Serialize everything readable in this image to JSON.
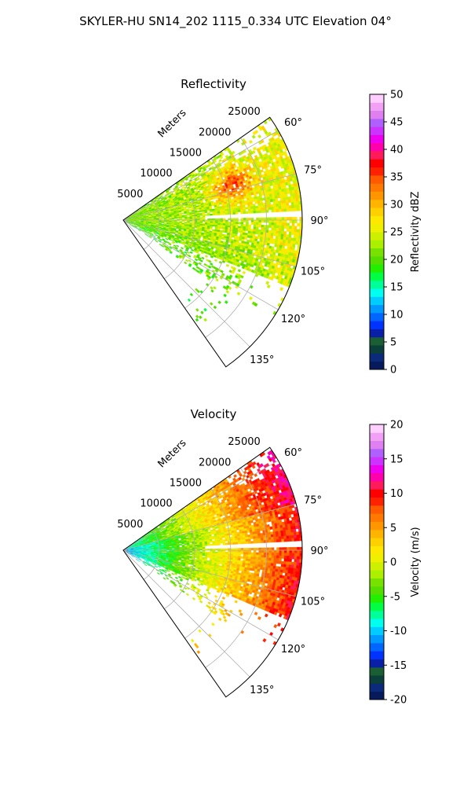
{
  "figure_title": "SKYLER-HU  SN14_202  1115_0.334 UTC Elevation 04°",
  "chart_data": [
    {
      "type": "polar-sector",
      "title": "Reflectivity",
      "radial_label": "Meters",
      "radial_ticks": [
        5000,
        10000,
        15000,
        20000,
        25000
      ],
      "r_max": 25000,
      "theta_range_deg": [
        55,
        145
      ],
      "theta_ticks_deg": [
        60,
        75,
        90,
        105,
        120,
        135
      ],
      "theta_tick_labels": [
        "60°",
        "75°",
        "90°",
        "105°",
        "120°",
        "135°"
      ],
      "colorbar": {
        "label": "Reflectivity dBZ",
        "min": 0,
        "max": 50,
        "ticks": [
          0,
          5,
          10,
          15,
          20,
          25,
          30,
          35,
          40,
          45,
          50
        ],
        "colors": [
          "#071a5c",
          "#0b2a7a",
          "#0a3f3a",
          "#1a5e34",
          "#0a1fa8",
          "#0033ff",
          "#0066ff",
          "#0099ff",
          "#00ccff",
          "#00ffee",
          "#00ff99",
          "#00ff44",
          "#22ee00",
          "#55dd00",
          "#77e200",
          "#aaf000",
          "#ccf000",
          "#eef000",
          "#ffe800",
          "#ffd000",
          "#ffb400",
          "#ff9600",
          "#ff7800",
          "#ff5a00",
          "#ff2200",
          "#ff0000",
          "#ff1a5a",
          "#ff00aa",
          "#ee00ee",
          "#cc33ff",
          "#b060ff",
          "#e080f0",
          "#f0a0f5",
          "#ffd0ff"
        ]
      },
      "field_description_values": {
        "near_range_mean_dbz": 21,
        "far_range_mean_dbz": 26,
        "peak_dbz": 36,
        "peak_azimuth_deg": 72,
        "peak_range_m": 16000
      }
    },
    {
      "type": "polar-sector",
      "title": "Velocity",
      "radial_label": "Meters",
      "radial_ticks": [
        5000,
        10000,
        15000,
        20000,
        25000
      ],
      "r_max": 25000,
      "theta_range_deg": [
        55,
        145
      ],
      "theta_ticks_deg": [
        60,
        75,
        90,
        105,
        120,
        135
      ],
      "theta_tick_labels": [
        "60°",
        "75°",
        "90°",
        "105°",
        "120°",
        "135°"
      ],
      "colorbar": {
        "label": "Velocity (m/s)",
        "min": -20,
        "max": 20,
        "ticks": [
          -20,
          -15,
          -10,
          -5,
          0,
          5,
          10,
          15,
          20
        ],
        "colors": [
          "#071a5c",
          "#0b2a7a",
          "#0a3f3a",
          "#1a5e34",
          "#0a1fa8",
          "#0033ff",
          "#0066ff",
          "#0099ff",
          "#00ccff",
          "#00ffee",
          "#00ff99",
          "#00ff44",
          "#22ee00",
          "#55dd00",
          "#77e200",
          "#aaf000",
          "#ccf000",
          "#eef000",
          "#ffe800",
          "#ffd000",
          "#ffb400",
          "#ff9600",
          "#ff7800",
          "#ff5a00",
          "#ff2200",
          "#ff0000",
          "#ff1a5a",
          "#ff00aa",
          "#ee00ee",
          "#cc33ff",
          "#b060ff",
          "#e080f0",
          "#f0a0f5",
          "#ffd0ff"
        ]
      },
      "field_description_values": {
        "near_range_velocity_ms": -11,
        "mid_range_velocity_ms": 0,
        "far_range_velocity_ms": 10
      }
    }
  ]
}
